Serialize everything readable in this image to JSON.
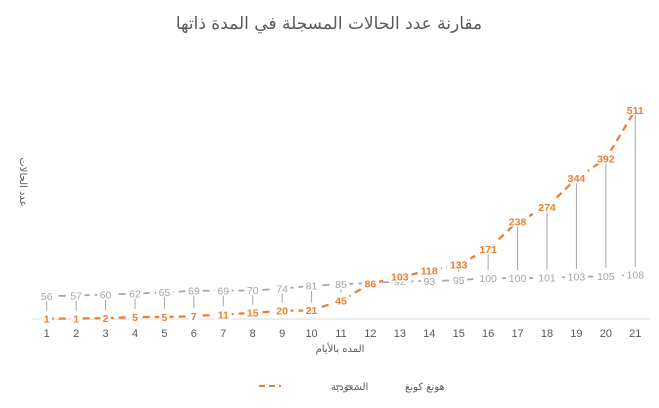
{
  "chart_data": {
    "type": "line",
    "title": "مقارنة عدد الحالات المسجلة في المدة ذاتها",
    "xlabel": "المده بالأيام",
    "ylabel": "عدد الحالات",
    "x": [
      1,
      2,
      3,
      4,
      5,
      6,
      7,
      8,
      9,
      10,
      11,
      12,
      13,
      14,
      15,
      16,
      17,
      18,
      19,
      20,
      21
    ],
    "ylim": [
      0,
      560
    ],
    "grid": false,
    "legend_position": "bottom",
    "series": [
      {
        "name": "السعودية",
        "color": "#ED7D31",
        "style": "dashed",
        "values": [
          1,
          1,
          2,
          5,
          5,
          7,
          11,
          15,
          20,
          21,
          45,
          86,
          103,
          118,
          133,
          171,
          238,
          274,
          344,
          392,
          511
        ]
      },
      {
        "name": "هونغ كونغ",
        "color": "#A5A5A5",
        "style": "dashed",
        "values": [
          56,
          57,
          60,
          62,
          65,
          69,
          69,
          70,
          74,
          81,
          85,
          88,
          92,
          93,
          95,
          100,
          100,
          101,
          103,
          105,
          108
        ]
      }
    ]
  }
}
